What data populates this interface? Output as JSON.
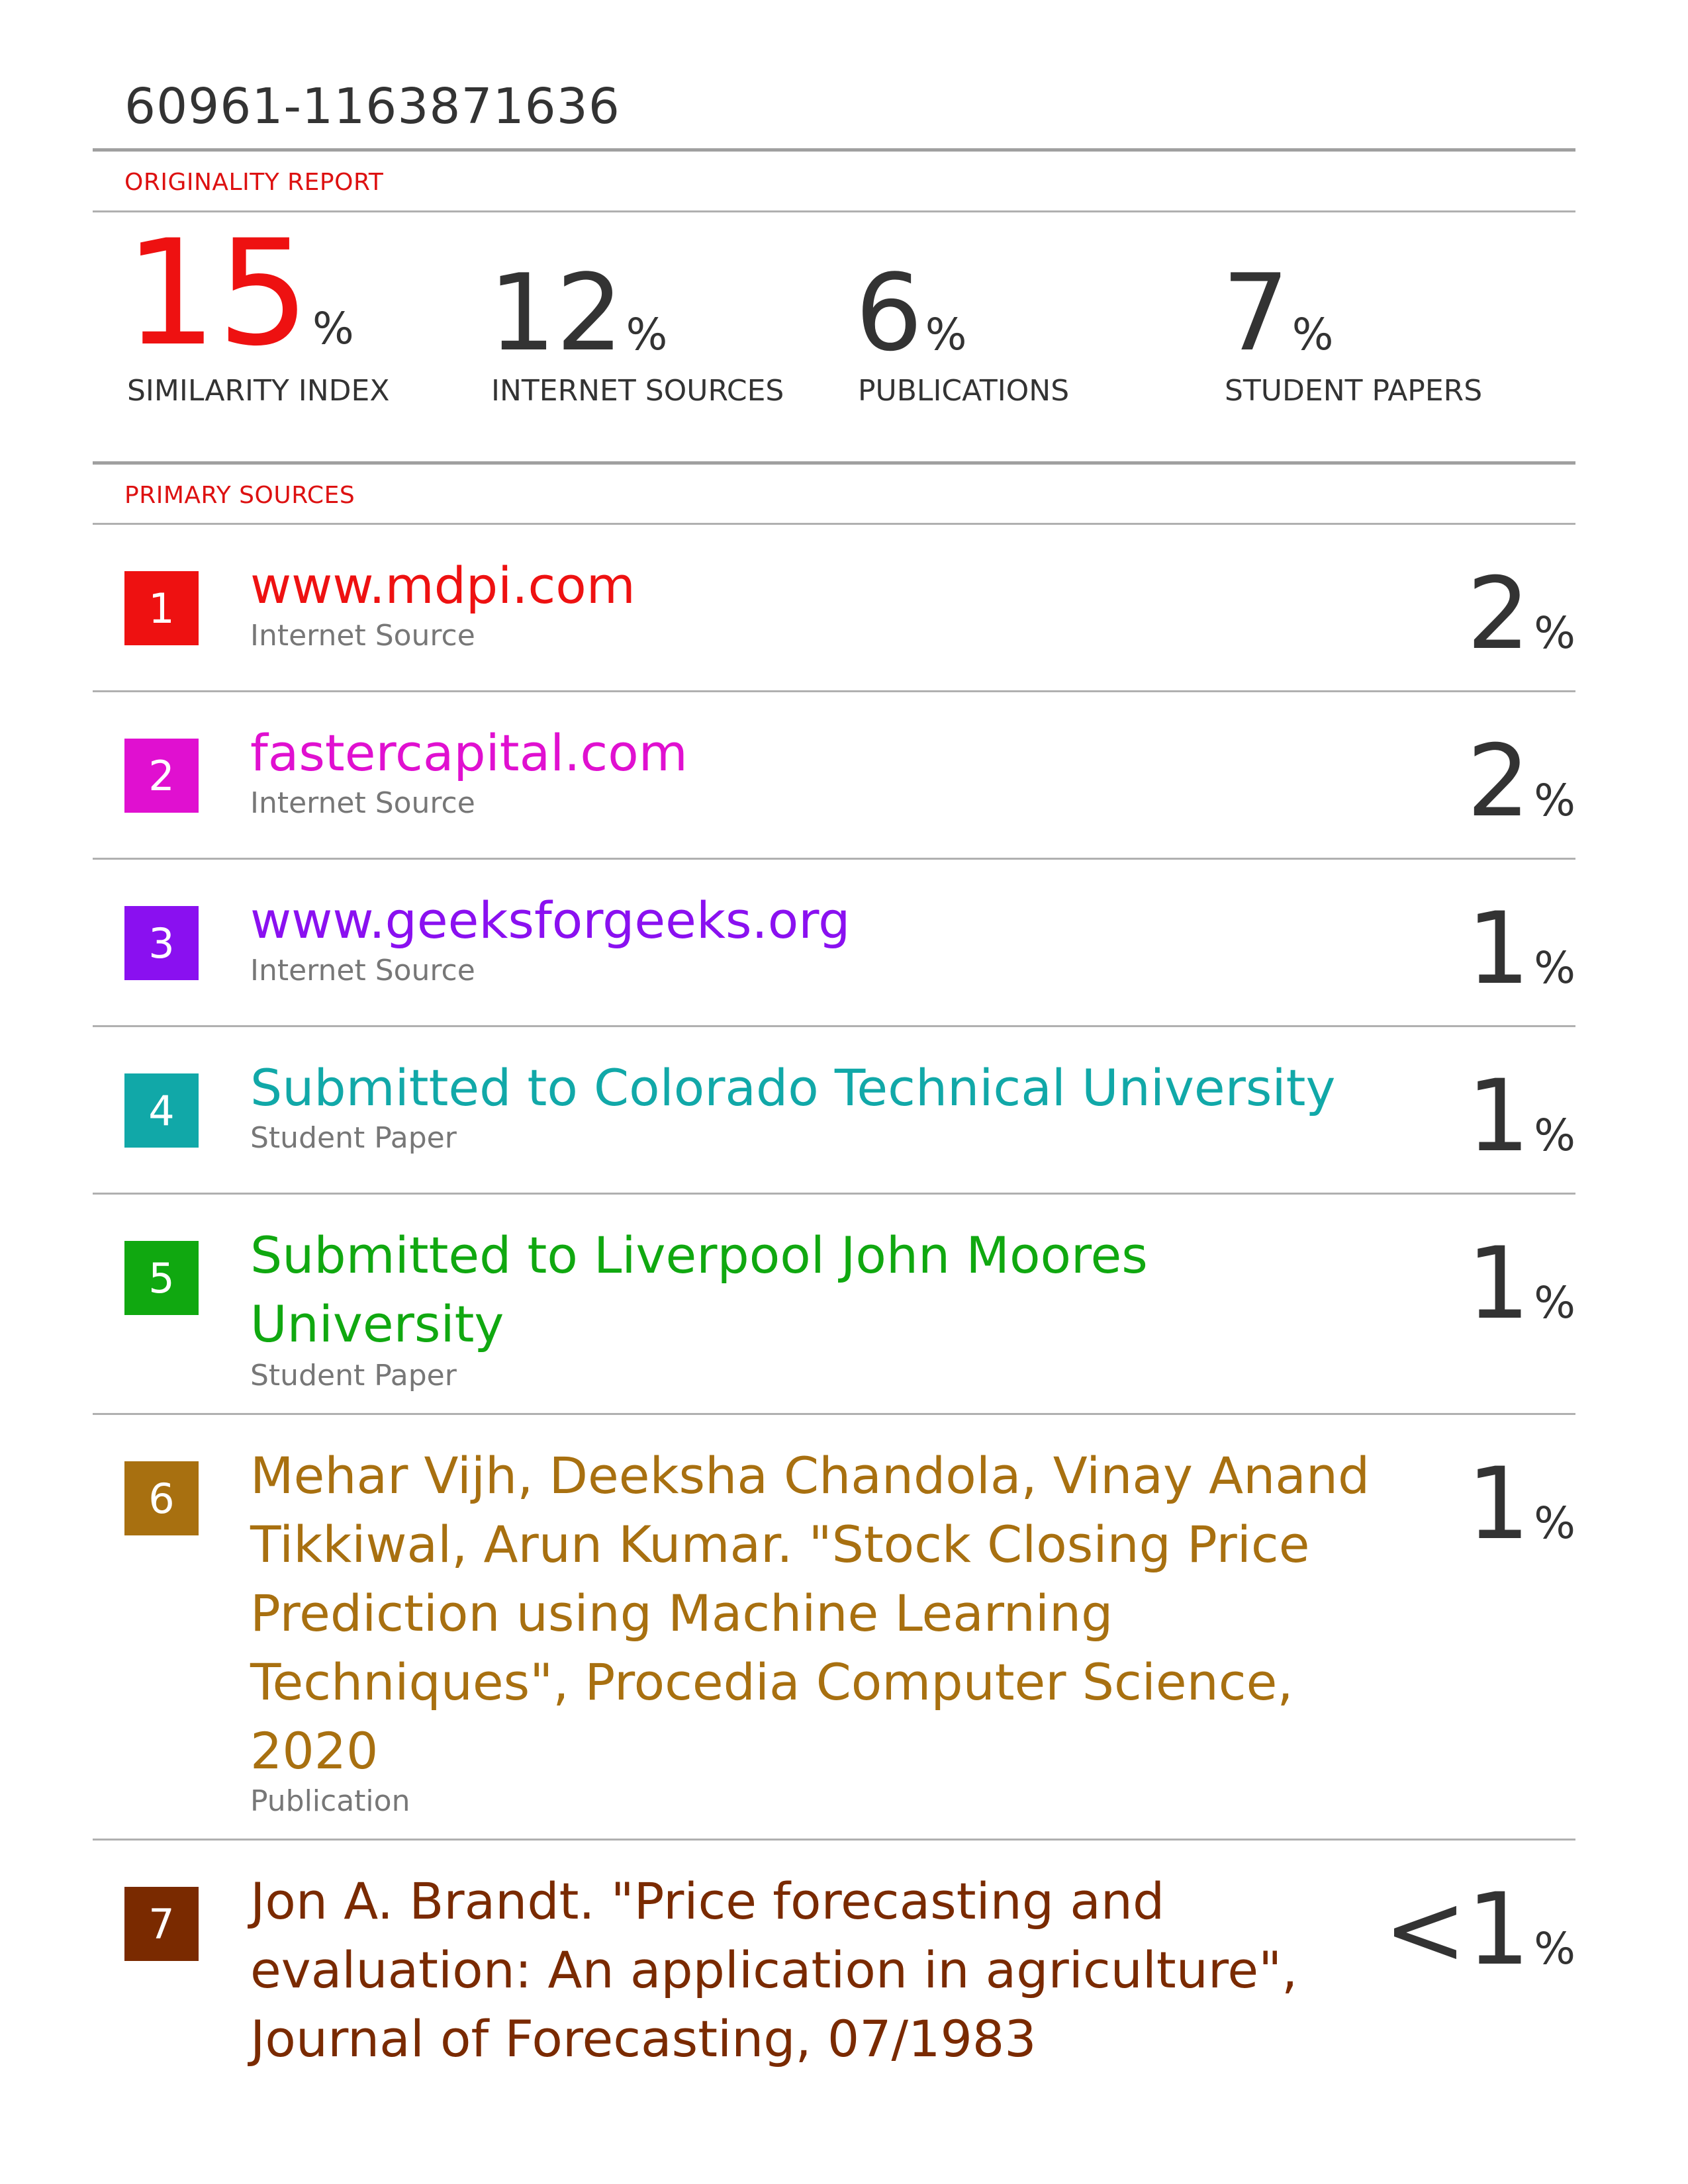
{
  "document_id": "60961-1163871636",
  "originality_report_label": "ORIGINALITY REPORT",
  "primary_sources_label": "PRIMARY SOURCES",
  "stats": {
    "similarity_index": {
      "value": "15",
      "unit": "%",
      "label": "SIMILARITY INDEX"
    },
    "internet_sources": {
      "value": "12",
      "unit": "%",
      "label": "INTERNET SOURCES"
    },
    "publications": {
      "value": "6",
      "unit": "%",
      "label": "PUBLICATIONS"
    },
    "student_papers": {
      "value": "7",
      "unit": "%",
      "label": "STUDENT PAPERS"
    }
  },
  "colors": {
    "accent": "#ee1111",
    "source_1": "#ee1111",
    "source_2": "#e010d0",
    "source_3": "#8a10f0",
    "source_4": "#11a8a8",
    "source_5": "#10a810",
    "source_6": "#a87010",
    "source_7": "#7a2a00"
  },
  "sources": [
    {
      "index": "1",
      "title_lines": [
        "www.mdpi.com"
      ],
      "type": "Internet Source",
      "value": "2",
      "unit": "%"
    },
    {
      "index": "2",
      "title_lines": [
        "fastercapital.com"
      ],
      "type": "Internet Source",
      "value": "2",
      "unit": "%"
    },
    {
      "index": "3",
      "title_lines": [
        "www.geeksforgeeks.org"
      ],
      "type": "Internet Source",
      "value": "1",
      "unit": "%"
    },
    {
      "index": "4",
      "title_lines": [
        "Submitted to Colorado Technical University"
      ],
      "type": "Student Paper",
      "value": "1",
      "unit": "%"
    },
    {
      "index": "5",
      "title_lines": [
        "Submitted to Liverpool John Moores",
        "University"
      ],
      "type": "Student Paper",
      "value": "1",
      "unit": "%"
    },
    {
      "index": "6",
      "title_lines": [
        "Mehar Vijh, Deeksha Chandola, Vinay Anand",
        "Tikkiwal, Arun Kumar. \"Stock Closing Price",
        "Prediction using Machine Learning",
        "Techniques\", Procedia Computer Science,",
        "2020"
      ],
      "type": "Publication",
      "value": "1",
      "unit": "%"
    },
    {
      "index": "7",
      "title_lines": [
        "Jon A. Brandt. \"Price forecasting and",
        "evaluation: An application in agriculture\",",
        "Journal of Forecasting, 07/1983"
      ],
      "type": "",
      "value": "<1",
      "unit": "%"
    }
  ]
}
